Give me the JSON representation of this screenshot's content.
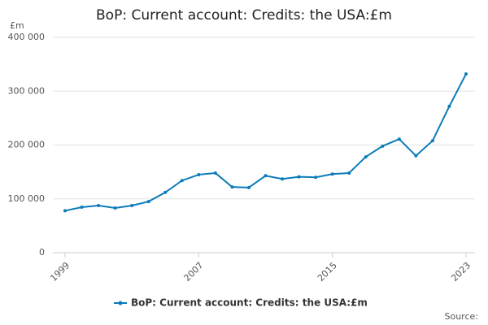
{
  "chart_data": {
    "type": "line",
    "title": "BoP: Current account: Credits: the USA:£m",
    "y_label": "£m",
    "source": "Source:",
    "x": [
      1999,
      2000,
      2001,
      2002,
      2003,
      2004,
      2005,
      2006,
      2007,
      2008,
      2009,
      2010,
      2011,
      2012,
      2013,
      2014,
      2015,
      2016,
      2017,
      2018,
      2019,
      2020,
      2021,
      2022,
      2023
    ],
    "series": [
      {
        "name": "BoP: Current account: Credits: the USA:£m",
        "color": "#0b7bb8",
        "values": [
          78000,
          84500,
          87500,
          83000,
          87500,
          95000,
          112000,
          134000,
          145000,
          148000,
          122000,
          121000,
          143000,
          137000,
          141000,
          140000,
          146000,
          148000,
          178000,
          198000,
          211000,
          180000,
          208000,
          272000,
          332000
        ]
      }
    ],
    "xlim": [
      1999,
      2023
    ],
    "xticks": [
      1999,
      2007,
      2015,
      2023
    ],
    "ylim": [
      0,
      400000
    ],
    "yticks": [
      0,
      {
        "value": 100000,
        "label": "100 000"
      },
      {
        "value": 200000,
        "label": "200 000"
      },
      {
        "value": 300000,
        "label": "300 000"
      },
      {
        "value": 400000,
        "label": "400 000"
      }
    ],
    "grid": true
  }
}
